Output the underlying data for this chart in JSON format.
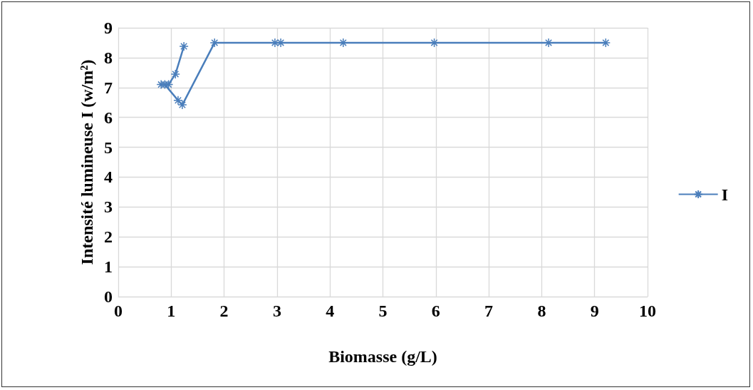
{
  "chart_data": {
    "type": "line",
    "xlabel": "Biomasse (g/L)",
    "ylabel": "Intensité lumineuse I (w/m²)",
    "series": [
      {
        "name": "I",
        "color": "#4a7ebb",
        "x": [
          1.24,
          1.08,
          0.95,
          0.81,
          0.88,
          1.13,
          1.21,
          1.82,
          2.96,
          3.07,
          4.25,
          5.97,
          8.13,
          9.21
        ],
        "values": [
          8.38,
          7.45,
          7.1,
          7.1,
          7.1,
          6.57,
          6.42,
          8.5,
          8.5,
          8.5,
          8.5,
          8.5,
          8.5,
          8.5
        ]
      }
    ],
    "xlim": [
      0,
      10
    ],
    "xticks": [
      0,
      1,
      2,
      3,
      4,
      5,
      6,
      7,
      8,
      9,
      10
    ],
    "ylim": [
      0,
      9
    ],
    "yticks": [
      0,
      1,
      2,
      3,
      4,
      5,
      6,
      7,
      8,
      9
    ],
    "grid": true,
    "legend": "right",
    "marker": "cross",
    "line_style": "solid"
  }
}
